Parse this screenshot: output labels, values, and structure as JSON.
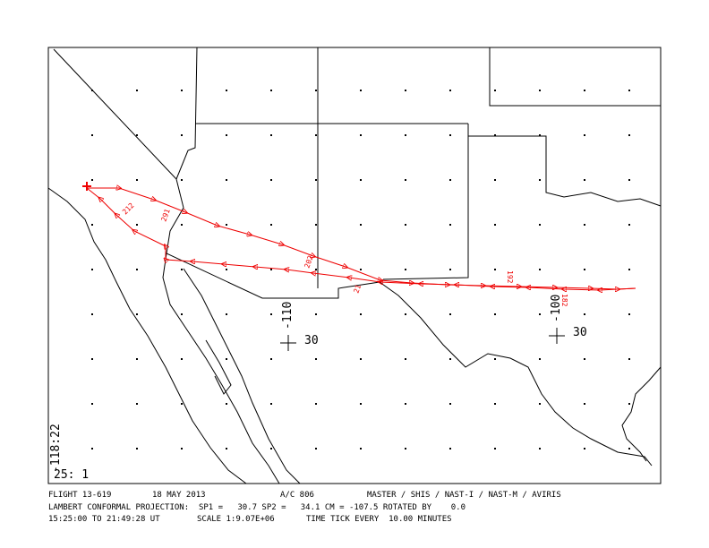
{
  "map": {
    "longitude_labels": [
      "-110",
      "-100"
    ],
    "latitude_labels": [
      "30",
      "30"
    ],
    "corner_longitude": "-118:22",
    "scale_label": "25: 1",
    "track_labels": [
      "291",
      "212",
      "202",
      "21",
      "192",
      "182"
    ]
  },
  "footer": {
    "line1": [
      "FLIGHT 13-619",
      "18 MAY 2013",
      "A/C 806",
      "MASTER / SHIS / NAST-I / NAST-M / AVIRIS"
    ],
    "line2": "LAMBERT CONFORMAL PROJECTION:  SP1 =   30.7 SP2 =   34.1 CM = -107.5 ROTATED BY    0.0",
    "line3": [
      "15:25:00 TO 21:49:28 UT",
      "SCALE 1:9.07E+06",
      "TIME TICK EVERY  10.00 MINUTES"
    ]
  }
}
